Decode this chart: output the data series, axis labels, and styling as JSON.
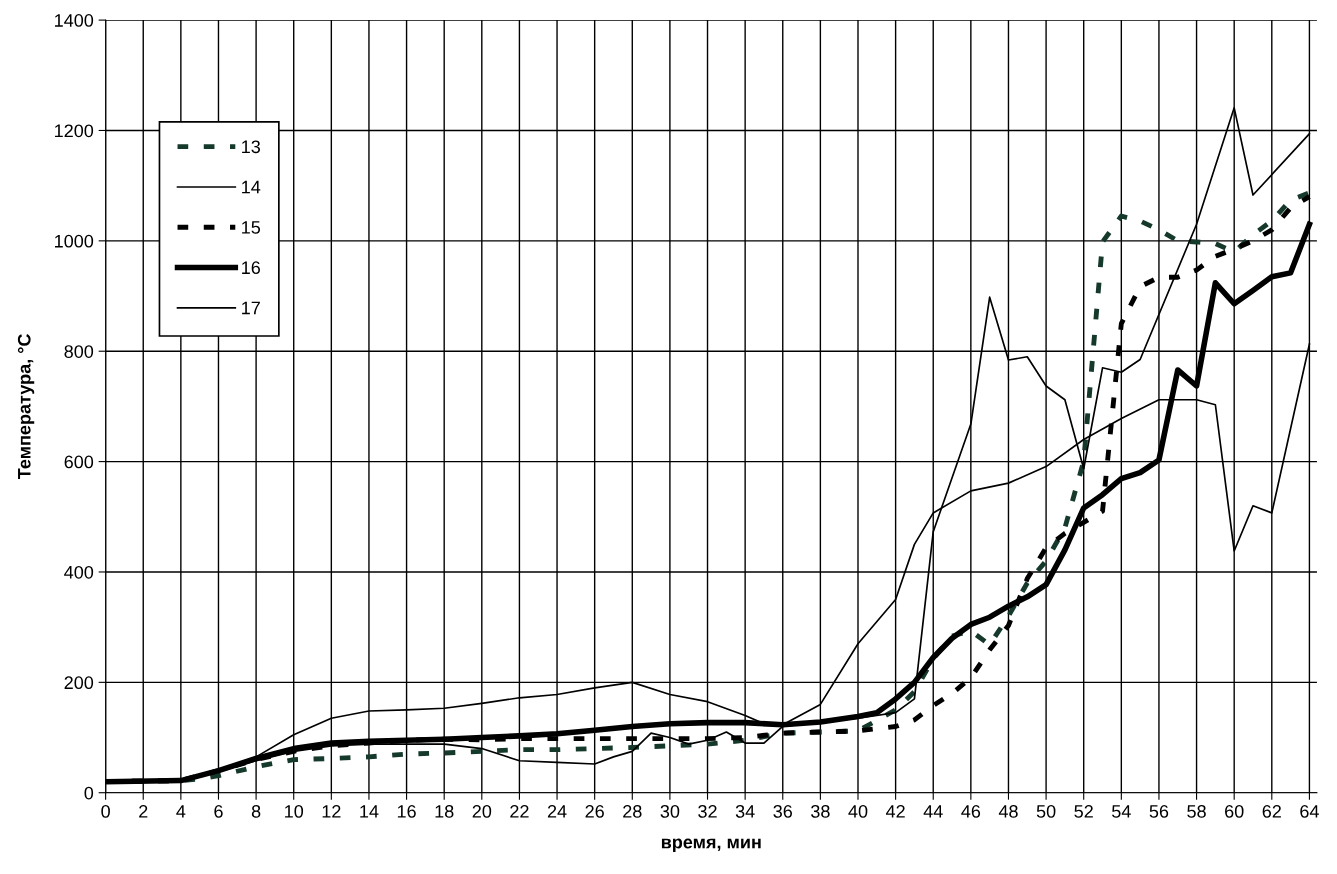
{
  "chart_data": {
    "type": "line",
    "xlabel": "время, мин",
    "ylabel": "Температура, °C",
    "xlim": [
      0,
      64.4
    ],
    "xticks": [
      0,
      2,
      4,
      6,
      8,
      10,
      12,
      14,
      16,
      18,
      20,
      22,
      24,
      26,
      28,
      30,
      32,
      34,
      36,
      38,
      40,
      42,
      44,
      46,
      48,
      50,
      52,
      54,
      56,
      58,
      60,
      62,
      64
    ],
    "ylim": [
      0,
      1400
    ],
    "yticks": [
      0,
      200,
      400,
      600,
      800,
      1000,
      1200,
      1400
    ],
    "grid": true,
    "legend": "top left",
    "series": [
      {
        "name": "13",
        "color": "#15392a",
        "line_style": "dashed",
        "x": [
          0,
          4,
          5,
          6,
          8,
          10,
          12,
          14,
          16,
          18,
          20,
          22,
          24,
          26,
          28,
          30,
          32,
          34,
          36,
          40,
          42,
          43,
          44,
          45,
          46,
          47,
          48,
          49,
          50,
          51,
          52,
          53,
          54,
          55,
          56,
          57,
          58,
          59,
          60,
          61,
          62,
          63,
          64
        ],
        "values": [
          20,
          22,
          25,
          31,
          47,
          60,
          62,
          65,
          70,
          72,
          75,
          78,
          78,
          80,
          82,
          85,
          88,
          95,
          108,
          112,
          150,
          183,
          243,
          284,
          293,
          268,
          320,
          380,
          420,
          480,
          601,
          998,
          1045,
          1036,
          1020,
          1000,
          998,
          995,
          980,
          1011,
          1036,
          1074,
          1087
        ]
      },
      {
        "name": "14",
        "color": "#000000",
        "line_style": "solid",
        "x": [
          0,
          4,
          6,
          8,
          10,
          12,
          14,
          16,
          18,
          20,
          22,
          24,
          26,
          28,
          30,
          32,
          34,
          35,
          36,
          38,
          40,
          42,
          43,
          44,
          46,
          48,
          50,
          52,
          54,
          56,
          58,
          59,
          60,
          61,
          62,
          64
        ],
        "values": [
          20,
          22,
          40,
          65,
          105,
          135,
          148,
          150,
          153,
          162,
          172,
          178,
          190,
          200,
          178,
          165,
          140,
          125,
          123,
          160,
          270,
          350,
          450,
          507,
          547,
          561,
          591,
          640,
          678,
          712,
          712,
          703,
          438,
          520,
          507,
          813
        ]
      },
      {
        "name": "15",
        "color": "#000000",
        "line_style": "dashed",
        "x": [
          0,
          4,
          6,
          8,
          10,
          12,
          14,
          16,
          18,
          20,
          22,
          24,
          26,
          28,
          30,
          32,
          34,
          36,
          38,
          40,
          42,
          43,
          44,
          45,
          46,
          47,
          48,
          49,
          50,
          51,
          52,
          53,
          54,
          55,
          56,
          57,
          58,
          59,
          60,
          61,
          62,
          63,
          64
        ],
        "values": [
          20,
          22,
          40,
          60,
          75,
          85,
          90,
          95,
          97,
          96,
          98,
          98,
          98,
          98,
          98,
          98,
          100,
          108,
          110,
          112,
          120,
          132,
          158,
          180,
          208,
          259,
          303,
          388,
          444,
          470,
          490,
          510,
          850,
          917,
          934,
          934,
          947,
          972,
          985,
          1000,
          1020,
          1060,
          1080
        ]
      },
      {
        "name": "16",
        "color": "#000000",
        "line_style": "solid",
        "x": [
          0,
          4,
          6,
          8,
          10,
          12,
          14,
          16,
          18,
          20,
          22,
          24,
          26,
          28,
          30,
          32,
          34,
          36,
          38,
          40,
          41,
          42,
          43,
          44,
          45,
          46,
          47,
          48,
          49,
          50,
          51,
          52,
          53,
          54,
          55,
          56,
          57,
          58,
          59,
          60,
          61,
          62,
          63,
          64
        ],
        "values": [
          20,
          22,
          40,
          62,
          80,
          90,
          93,
          95,
          97,
          100,
          103,
          107,
          113,
          120,
          125,
          127,
          127,
          123,
          128,
          138,
          145,
          170,
          200,
          245,
          280,
          305,
          318,
          338,
          355,
          377,
          440,
          516,
          540,
          569,
          580,
          603,
          766,
          737,
          924,
          886,
          910,
          935,
          942,
          1030
        ]
      },
      {
        "name": "17",
        "color": "#000000",
        "line_style": "solid",
        "x": [
          0,
          4,
          6,
          8,
          10,
          12,
          14,
          16,
          18,
          20,
          22,
          24,
          26,
          27,
          28,
          29,
          30,
          31,
          32,
          33,
          34,
          35,
          36,
          38,
          40,
          42,
          43,
          44,
          46,
          47,
          48,
          49,
          50,
          51,
          52,
          53,
          54,
          55,
          58,
          60,
          61,
          64
        ],
        "values": [
          18,
          20,
          38,
          58,
          75,
          85,
          88,
          88,
          88,
          80,
          58,
          55,
          52,
          65,
          75,
          108,
          100,
          88,
          95,
          110,
          90,
          90,
          120,
          128,
          135,
          145,
          170,
          473,
          668,
          898,
          784,
          790,
          737,
          712,
          587,
          770,
          762,
          785,
          1030,
          1241,
          1083,
          1194
        ]
      }
    ]
  }
}
